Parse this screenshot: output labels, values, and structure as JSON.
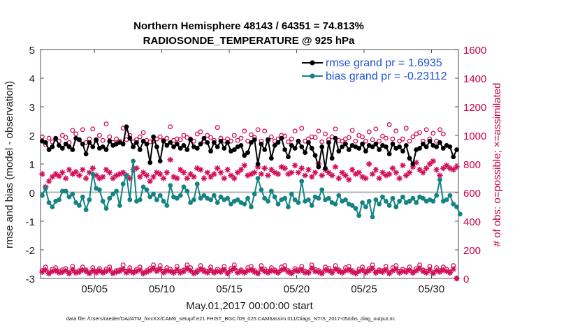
{
  "colors": {
    "rmse": "#000000",
    "bias": "#138482",
    "obs": "#d2105a",
    "legend_text": "#1d52d6",
    "zero_line": "#b3b3b3"
  },
  "chart_data": {
    "type": "line",
    "title_line1": "Northern Hemisphere 48143 / 64351 = 74.813%",
    "title_line2": "RADIOSONDE_TEMPERATURE @ 925 hPa",
    "xlabel": "May.01,2017 00:00:00 start",
    "ylabel_left": "rmse and bias (model - observation)",
    "ylabel_right": "# of obs: o=possible; ×=assimilated",
    "footer": "data file: /Users/raeder/DAI/ATM_forcXX/CAM6_setup/f.e21.FHIST_BGC.f09_025.CAM6assim.011/Diags_NTrS_2017-05/obs_diag_output.nc",
    "x_start_day": 1.125,
    "x_end_day": 32.0,
    "x_step_day": 0.25,
    "xlim": [
      1,
      32
    ],
    "ylim_left": [
      -3,
      5
    ],
    "ylim_right": [
      0,
      1600
    ],
    "x_ticks": [
      {
        "day": 5,
        "label": "05/05"
      },
      {
        "day": 10,
        "label": "05/10"
      },
      {
        "day": 15,
        "label": "05/15"
      },
      {
        "day": 20,
        "label": "05/20"
      },
      {
        "day": 25,
        "label": "05/25"
      },
      {
        "day": 30,
        "label": "05/30"
      }
    ],
    "y_ticks_left": [
      "5",
      "4",
      "3",
      "2",
      "1",
      "0",
      "-1",
      "-2",
      "-3"
    ],
    "y_ticks_right": [
      "1600",
      "1400",
      "1200",
      "1000",
      "800",
      "600",
      "400",
      "200",
      "0"
    ],
    "legend": [
      {
        "label": "rmse grand pr = 1.6935",
        "series": "rmse"
      },
      {
        "label": "bias grand pr = -0.23112",
        "series": "bias"
      }
    ],
    "series": [
      {
        "name": "rmse",
        "values": [
          1.8,
          1.75,
          1.5,
          1.6,
          1.9,
          1.65,
          1.55,
          1.7,
          1.6,
          1.5,
          1.9,
          1.85,
          1.7,
          1.35,
          1.75,
          1.6,
          1.85,
          1.55,
          1.6,
          1.5,
          1.8,
          1.65,
          1.7,
          1.75,
          1.7,
          2.3,
          1.9,
          1.6,
          1.75,
          1.5,
          1.8,
          1.7,
          1.05,
          1.95,
          1.6,
          1.1,
          1.8,
          1.65,
          1.75,
          1.6,
          1.7,
          1.55,
          1.65,
          1.5,
          1.85,
          1.6,
          1.55,
          1.7,
          1.9,
          1.75,
          1.45,
          1.75,
          1.6,
          1.8,
          1.55,
          1.75,
          1.45,
          1.5,
          1.6,
          1.65,
          1.3,
          1.4,
          1.75,
          1.85,
          1.0,
          1.7,
          1.5,
          1.85,
          1.2,
          1.65,
          1.75,
          1.9,
          1.5,
          1.25,
          1.65,
          1.55,
          1.8,
          1.6,
          1.4,
          1.75,
          1.55,
          1.3,
          0.9,
          1.6,
          0.85,
          1.75,
          1.2,
          1.9,
          1.45,
          1.6,
          1.7,
          1.5,
          1.65,
          1.6,
          1.55,
          1.7,
          1.45,
          1.65,
          1.6,
          1.7,
          1.5,
          1.65,
          1.6,
          1.35,
          1.7,
          1.55,
          1.6,
          1.45,
          1.65,
          1.2,
          1.0,
          1.5,
          1.55,
          1.7,
          1.6,
          1.8,
          1.65,
          1.6,
          1.75,
          1.55,
          1.65,
          1.6,
          1.25,
          1.5
        ]
      },
      {
        "name": "bias",
        "values": [
          -0.1,
          0.15,
          -0.35,
          -0.5,
          -0.3,
          -0.25,
          0.05,
          0.05,
          -0.15,
          -0.05,
          -0.35,
          -0.45,
          -0.15,
          -0.6,
          -0.25,
          0.65,
          0.15,
          0.1,
          -0.3,
          -0.55,
          -0.2,
          -0.05,
          0.05,
          -0.45,
          0.3,
          0.6,
          -0.25,
          1.1,
          -0.3,
          -0.25,
          0.2,
          0.1,
          -0.15,
          -0.05,
          -0.25,
          -0.1,
          -0.3,
          -0.45,
          0.25,
          -0.15,
          -0.2,
          -0.1,
          0.2,
          0.05,
          -0.35,
          -0.25,
          0.3,
          -0.2,
          -0.1,
          -0.2,
          -0.25,
          -0.1,
          -0.35,
          -0.15,
          -0.25,
          -0.2,
          -0.4,
          -0.3,
          -0.25,
          -0.35,
          -0.4,
          -0.2,
          -0.5,
          -0.05,
          0.5,
          0.1,
          -0.2,
          -0.3,
          0.05,
          -0.15,
          -0.4,
          -0.25,
          -0.2,
          -0.5,
          -0.05,
          -0.25,
          -0.35,
          0.4,
          -0.3,
          -0.25,
          -0.45,
          -0.15,
          -0.2,
          0.1,
          -0.25,
          -0.2,
          -0.35,
          -0.4,
          -0.1,
          -0.3,
          -0.25,
          -0.4,
          -0.45,
          -0.55,
          -0.8,
          -0.35,
          -0.5,
          -0.3,
          -0.85,
          -0.25,
          -0.4,
          -0.15,
          -0.3,
          -0.45,
          -0.2,
          -0.5,
          -0.3,
          -0.15,
          -0.35,
          -0.3,
          -0.2,
          -0.35,
          -0.15,
          -0.2,
          -0.3,
          -0.25,
          -0.3,
          -0.1,
          0.45,
          -0.3,
          -0.25,
          -0.1,
          -0.4,
          -0.5,
          -0.75
        ]
      },
      {
        "name": "possible",
        "values": [
          990,
          935,
          980,
          955,
          975,
          960,
          1000,
          985,
          950,
          1035,
          1010,
          970,
          1040,
          950,
          975,
          1045,
          965,
          1000,
          965,
          1080,
          990,
          950,
          975,
          960,
          1050,
          970,
          1000,
          955,
          970,
          990,
          1020,
          965,
          955,
          960,
          975,
          990,
          965,
          980,
          1060,
          965,
          975,
          970,
          1000,
          985,
          975,
          960,
          1010,
          1025,
          960,
          1000,
          985,
          965,
          1055,
          980,
          960,
          975,
          960,
          1000,
          965,
          980,
          1030,
          960,
          1005,
          985,
          1040,
          960,
          1030,
          965,
          990,
          960,
          975,
          1000,
          995,
          955,
          975,
          1030,
          960,
          1050,
          960,
          975,
          990,
          985,
          1030,
          955,
          1010,
          970,
          990,
          1045,
          965,
          960,
          975,
          985,
          1035,
          960,
          1000,
          990,
          960,
          1025,
          970,
          1045,
          960,
          995,
          980,
          1075,
          975,
          1030,
          960,
          975,
          1050,
          960,
          990,
          1010,
          1020,
          960,
          1040,
          975,
          1015,
          960,
          1040,
          1010
        ]
      },
      {
        "name": "assimilated",
        "values": [
          730,
          640,
          680,
          710,
          730,
          715,
          740,
          700,
          760,
          730,
          745,
          720,
          760,
          700,
          740,
          770,
          720,
          700,
          710,
          760,
          740,
          700,
          720,
          730,
          740,
          720,
          700,
          760,
          770,
          710,
          740,
          720,
          680,
          710,
          740,
          730,
          700,
          740,
          830,
          710,
          700,
          760,
          740,
          700,
          730,
          710,
          770,
          760,
          700,
          740,
          710,
          730,
          770,
          740,
          700,
          760,
          720,
          700,
          740,
          760,
          790,
          720,
          730,
          740,
          780,
          730,
          770,
          720,
          760,
          740,
          730,
          780,
          770,
          730,
          740,
          790,
          740,
          770,
          720,
          760,
          710,
          740,
          800,
          720,
          760,
          740,
          720,
          780,
          700,
          740,
          720,
          690,
          760,
          730,
          740,
          710,
          700,
          800,
          730,
          760,
          700,
          740,
          720,
          730,
          770,
          740,
          700,
          790,
          720,
          740,
          780,
          810,
          760,
          740,
          770,
          800,
          820,
          760,
          720,
          770,
          790,
          770,
          760,
          780
        ]
      },
      {
        "name": "possible_925_surface",
        "values": [
          55,
          80,
          40,
          65,
          75,
          50,
          60,
          70,
          40,
          85,
          45,
          55,
          80,
          60,
          40,
          75,
          50,
          70,
          45,
          65,
          80,
          40,
          55,
          60,
          95,
          50,
          75,
          45,
          65,
          80,
          40,
          55,
          70,
          95,
          60,
          90,
          50,
          75,
          65,
          45,
          85,
          50,
          60,
          95,
          75,
          40,
          55,
          90,
          60,
          50,
          80,
          45,
          65,
          55,
          85,
          40,
          70,
          95,
          50,
          60,
          45,
          75,
          85,
          55,
          40,
          90,
          65,
          50,
          75,
          60,
          45,
          80,
          90,
          55,
          40,
          70,
          60,
          85,
          50,
          45,
          95,
          65,
          55,
          40,
          80,
          70,
          50,
          90,
          60,
          45,
          75,
          85,
          55,
          40,
          65,
          80,
          50,
          70,
          95,
          45,
          60,
          55,
          85,
          40,
          75,
          90,
          50,
          65,
          55,
          80,
          45,
          70,
          95,
          60,
          50,
          85,
          40,
          75,
          55,
          80,
          65,
          45,
          90,
          0
        ]
      },
      {
        "name": "assimilated_925_surface",
        "values": [
          45,
          60,
          35,
          50,
          55,
          40,
          45,
          55,
          35,
          60,
          40,
          45,
          60,
          50,
          35,
          55,
          40,
          55,
          40,
          50,
          60,
          35,
          45,
          50,
          65,
          40,
          55,
          40,
          50,
          60,
          35,
          45,
          55,
          70,
          50,
          65,
          40,
          55,
          50,
          40,
          60,
          40,
          50,
          70,
          55,
          35,
          45,
          65,
          50,
          40,
          60,
          40,
          50,
          45,
          60,
          35,
          55,
          70,
          40,
          50,
          40,
          55,
          60,
          45,
          35,
          65,
          50,
          40,
          55,
          50,
          40,
          60,
          65,
          45,
          35,
          55,
          50,
          60,
          40,
          40,
          70,
          50,
          45,
          35,
          60,
          55,
          40,
          65,
          50,
          40,
          55,
          60,
          45,
          35,
          50,
          60,
          40,
          55,
          70,
          40,
          50,
          45,
          60,
          35,
          55,
          65,
          40,
          50,
          45,
          60,
          40,
          55,
          70,
          50,
          40,
          60,
          35,
          55,
          45,
          60,
          50,
          40,
          65,
          0
        ]
      }
    ]
  }
}
